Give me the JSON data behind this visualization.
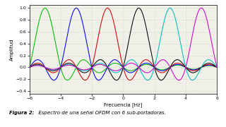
{
  "title": "",
  "xlabel": "Frecuencia [Hz]",
  "ylabel": "Amplitud",
  "xlim": [
    -6,
    6
  ],
  "ylim": [
    -0.45,
    1.05
  ],
  "yticks": [
    -0.4,
    -0.2,
    0,
    0.2,
    0.4,
    0.6,
    0.8,
    1.0
  ],
  "xticks": [
    -6,
    -4,
    -2,
    0,
    2,
    4,
    6
  ],
  "carrier_centers": [
    -5,
    -3,
    -1,
    1,
    3,
    5
  ],
  "colors": [
    "#00bb00",
    "#0000ee",
    "#cc0000",
    "#000000",
    "#00bbbb",
    "#cc00cc"
  ],
  "caption_bold": "Figura 2:",
  "caption_normal": "  Espectro de una señal OFDM con 6 sub-portadoras.",
  "background_color": "#f0f0e8",
  "grid_color": "#bbbbbb"
}
